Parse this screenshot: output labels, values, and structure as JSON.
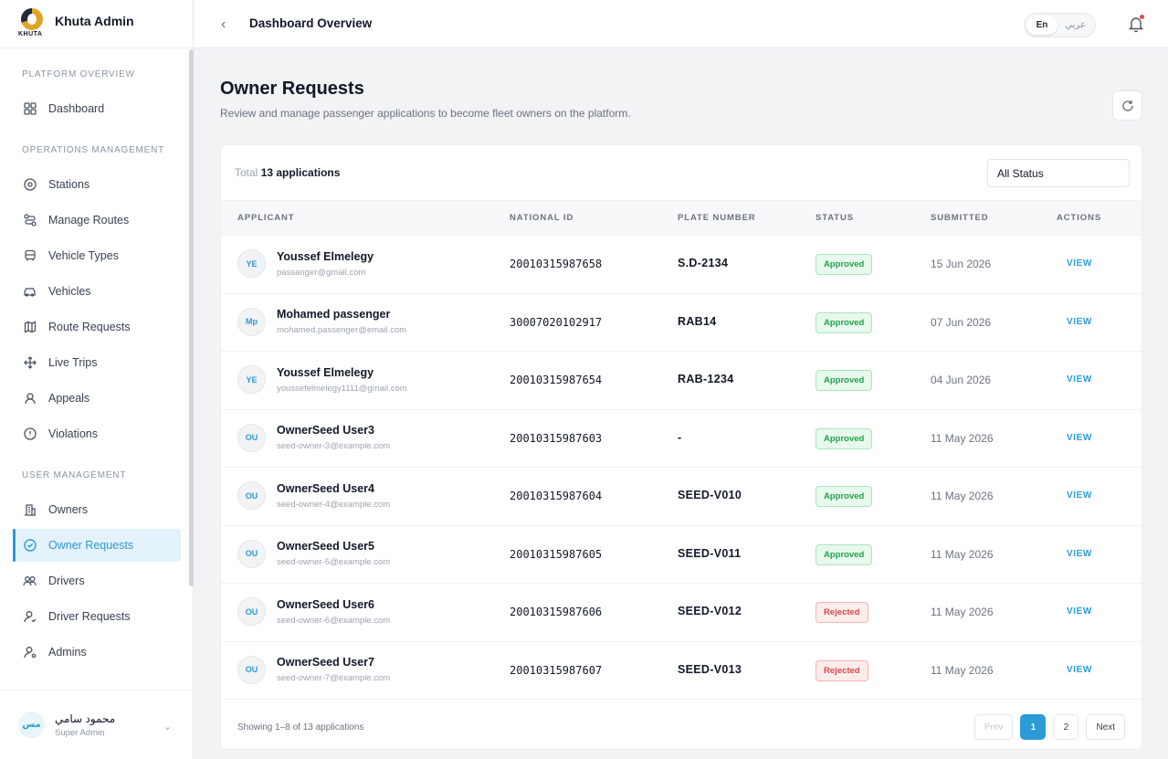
{
  "brand": {
    "logo_text": "KHUTA",
    "title": "Khuta Admin"
  },
  "sidebar": {
    "sections": [
      {
        "title": "PLATFORM OVERVIEW",
        "items": [
          {
            "label": "Dashboard",
            "icon": "grid-icon"
          }
        ]
      },
      {
        "title": "OPERATIONS MANAGEMENT",
        "items": [
          {
            "label": "Stations",
            "icon": "map-pin-icon"
          },
          {
            "label": "Manage Routes",
            "icon": "route-icon"
          },
          {
            "label": "Vehicle Types",
            "icon": "bus-icon"
          },
          {
            "label": "Vehicles",
            "icon": "car-icon"
          },
          {
            "label": "Route Requests",
            "icon": "map-icon"
          },
          {
            "label": "Live Trips",
            "icon": "move-icon"
          },
          {
            "label": "Appeals",
            "icon": "users-alert-icon"
          },
          {
            "label": "Violations",
            "icon": "alert-circle-icon"
          }
        ]
      },
      {
        "title": "USER MANAGEMENT",
        "items": [
          {
            "label": "Owners",
            "icon": "building-icon"
          },
          {
            "label": "Owner Requests",
            "icon": "check-circle-icon",
            "active": true
          },
          {
            "label": "Drivers",
            "icon": "users-icon"
          },
          {
            "label": "Driver Requests",
            "icon": "user-check-icon"
          },
          {
            "label": "Admins",
            "icon": "user-gear-icon"
          }
        ]
      }
    ],
    "user": {
      "initials": "مس",
      "name": "محمود سامي",
      "role": "Super Admin"
    }
  },
  "topbar": {
    "title": "Dashboard Overview",
    "lang_en": "En",
    "lang_ar": "عربي"
  },
  "page": {
    "title": "Owner Requests",
    "subtitle": "Review and manage passenger applications to become fleet owners on the platform."
  },
  "table": {
    "total_prefix": "Total",
    "total_count": "13 applications",
    "status_filter": "All Status",
    "columns": {
      "applicant": "APPLICANT",
      "national_id": "NATIONAL ID",
      "plate": "PLATE NUMBER",
      "status": "STATUS",
      "submitted": "SUBMITTED",
      "actions": "ACTIONS"
    },
    "rows": [
      {
        "initials": "YE",
        "name": "Youssef Elmelegy",
        "email": "passanger@gmail.com",
        "national_id": "20010315987658",
        "plate": "S.D-2134",
        "status": "Approved",
        "submitted": "15 Jun 2026",
        "action": "VIEW"
      },
      {
        "initials": "Mp",
        "name": "Mohamed passenger",
        "email": "mohamed.passenger@email.com",
        "national_id": "30007020102917",
        "plate": "RAB14",
        "status": "Approved",
        "submitted": "07 Jun 2026",
        "action": "VIEW"
      },
      {
        "initials": "YE",
        "name": "Youssef Elmelegy",
        "email": "youssefelmelegy1111@gmail.com",
        "national_id": "20010315987654",
        "plate": "RAB-1234",
        "status": "Approved",
        "submitted": "04 Jun 2026",
        "action": "VIEW"
      },
      {
        "initials": "OU",
        "name": "OwnerSeed User3",
        "email": "seed-owner-3@example.com",
        "national_id": "20010315987603",
        "plate": "-",
        "status": "Approved",
        "submitted": "11 May 2026",
        "action": "VIEW"
      },
      {
        "initials": "OU",
        "name": "OwnerSeed User4",
        "email": "seed-owner-4@example.com",
        "national_id": "20010315987604",
        "plate": "SEED-V010",
        "status": "Approved",
        "submitted": "11 May 2026",
        "action": "VIEW"
      },
      {
        "initials": "OU",
        "name": "OwnerSeed User5",
        "email": "seed-owner-5@example.com",
        "national_id": "20010315987605",
        "plate": "SEED-V011",
        "status": "Approved",
        "submitted": "11 May 2026",
        "action": "VIEW"
      },
      {
        "initials": "OU",
        "name": "OwnerSeed User6",
        "email": "seed-owner-6@example.com",
        "national_id": "20010315987606",
        "plate": "SEED-V012",
        "status": "Rejected",
        "submitted": "11 May 2026",
        "action": "VIEW"
      },
      {
        "initials": "OU",
        "name": "OwnerSeed User7",
        "email": "seed-owner-7@example.com",
        "national_id": "20010315987607",
        "plate": "SEED-V013",
        "status": "Rejected",
        "submitted": "11 May 2026",
        "action": "VIEW"
      }
    ],
    "showing": "Showing 1–8 of 13 applications",
    "pagination": {
      "prev": "Prev",
      "pages": [
        "1",
        "2"
      ],
      "current": "1",
      "next": "Next"
    }
  },
  "colors": {
    "accent": "#2b9bd6",
    "approved": "#22a34a",
    "rejected": "#d94848"
  }
}
